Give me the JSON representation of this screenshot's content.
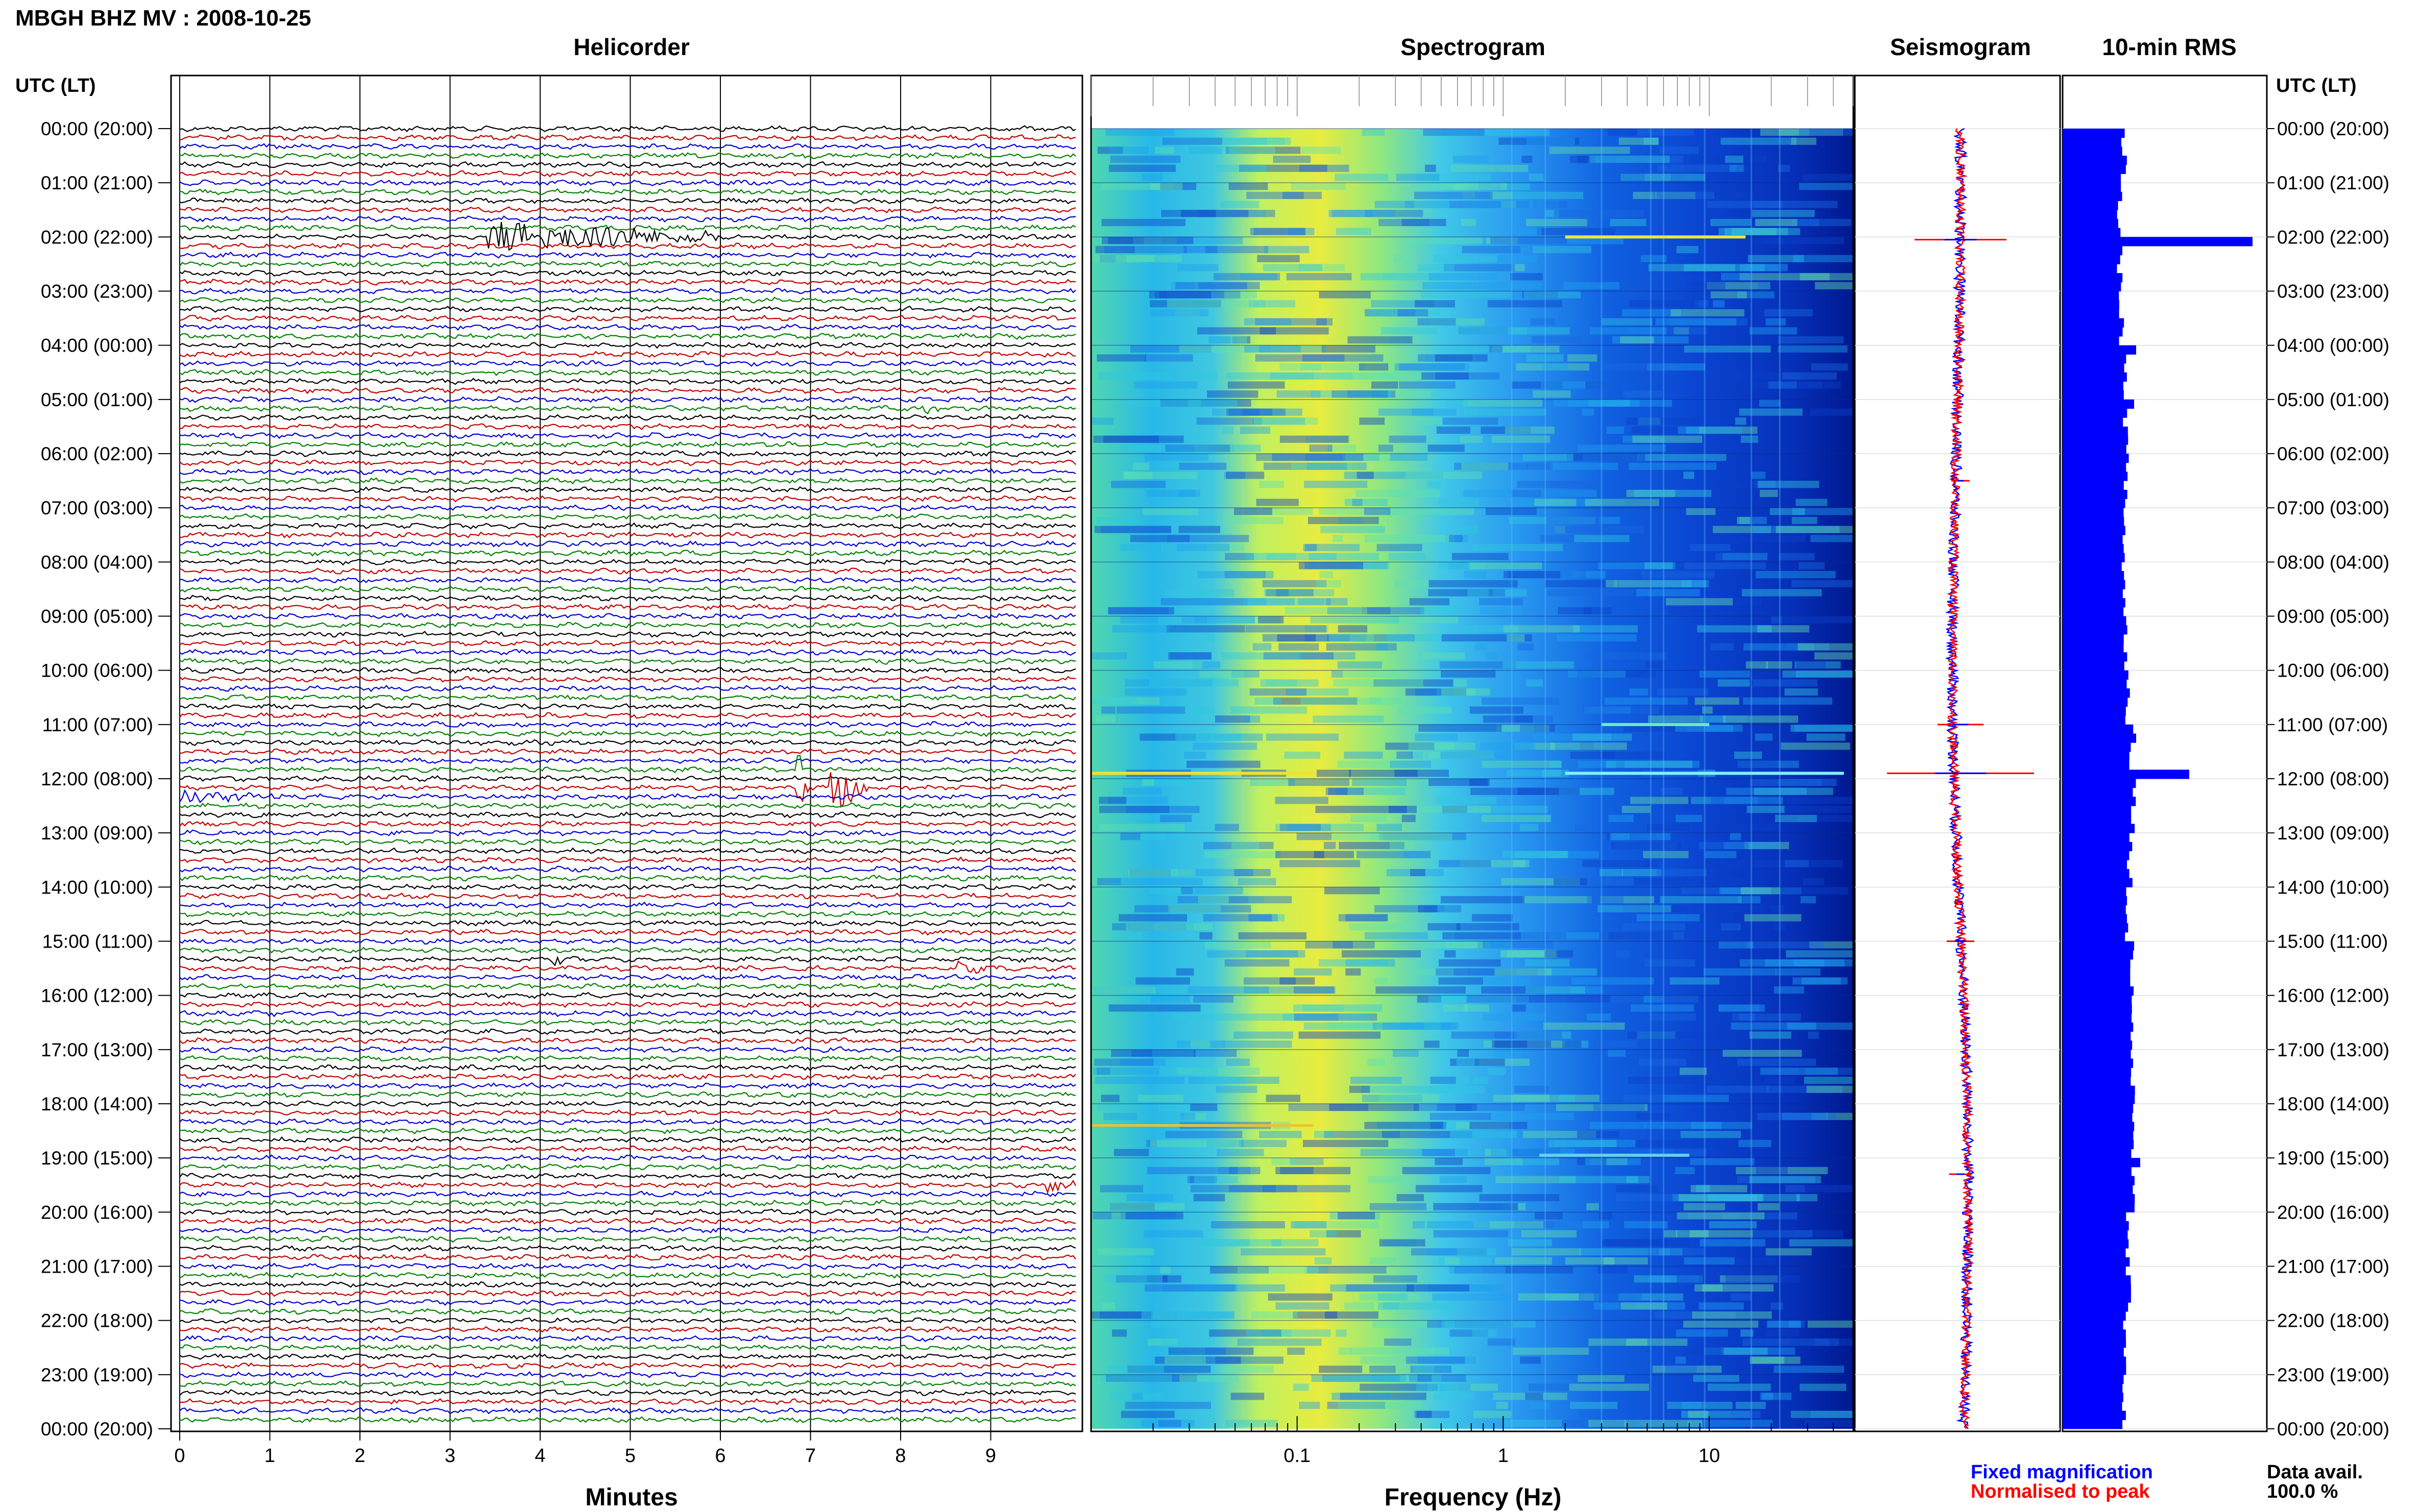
{
  "header": {
    "title": "MBGH BHZ MV : 2008-10-25",
    "utc_label_left": "UTC (LT)",
    "utc_label_right": "UTC (LT)"
  },
  "panels": {
    "helicorder": "Helicorder",
    "spectrogram": "Spectrogram",
    "seismogram": "Seismogram",
    "rms": "10-min RMS"
  },
  "time_labels": [
    "00:00 (20:00)",
    "01:00 (21:00)",
    "02:00 (22:00)",
    "03:00 (23:00)",
    "04:00 (00:00)",
    "05:00 (01:00)",
    "06:00 (02:00)",
    "07:00 (03:00)",
    "08:00 (04:00)",
    "09:00 (05:00)",
    "10:00 (06:00)",
    "11:00 (07:00)",
    "12:00 (08:00)",
    "13:00 (09:00)",
    "14:00 (10:00)",
    "15:00 (11:00)",
    "16:00 (12:00)",
    "17:00 (13:00)",
    "18:00 (14:00)",
    "19:00 (15:00)",
    "20:00 (16:00)",
    "21:00 (17:00)",
    "22:00 (18:00)",
    "23:00 (19:00)",
    "00:00 (20:00)"
  ],
  "chart_data": [
    {
      "type": "line",
      "name": "helicorder",
      "xlabel": "Minutes",
      "x_ticks": [
        0,
        1,
        2,
        3,
        4,
        5,
        6,
        7,
        8,
        9
      ],
      "xlim": [
        0,
        10
      ],
      "rows_per_hour": 6,
      "trace_colors": [
        "#000000",
        "#c00000",
        "#0000d0",
        "#008000"
      ],
      "events": [
        {
          "row": 12,
          "minute_start": 3.4,
          "minute_end": 6.0,
          "amplitude": 3.2,
          "color": "#000000"
        },
        {
          "row": 0,
          "minute_start": 2.48,
          "minute_end": 2.55,
          "amplitude": 1.2,
          "color": "#000000"
        },
        {
          "row": 31,
          "minute_start": 8.25,
          "minute_end": 8.4,
          "amplitude": 1.4,
          "color": "#0000d0"
        },
        {
          "row": 73,
          "minute_start": 7.2,
          "minute_end": 7.7,
          "amplitude": 5.0,
          "color": "#0000d0"
        },
        {
          "row": 73,
          "minute_start": 6.85,
          "minute_end": 7.0,
          "amplitude": 3.5,
          "color": "#0000d0"
        },
        {
          "row": 71,
          "minute_start": 6.85,
          "minute_end": 6.95,
          "amplitude": 4.0,
          "color": "#c00000"
        },
        {
          "row": 74,
          "minute_start": 0.0,
          "minute_end": 1.3,
          "amplitude": 1.3,
          "color": "#008000"
        },
        {
          "row": 92,
          "minute_start": 4.1,
          "minute_end": 4.3,
          "amplitude": 1.3,
          "color": "#c00000"
        },
        {
          "row": 93,
          "minute_start": 8.6,
          "minute_end": 9.0,
          "amplitude": 1.0,
          "color": "#0000d0"
        },
        {
          "row": 117,
          "minute_start": 9.6,
          "minute_end": 9.95,
          "amplitude": 1.6,
          "color": "#008000"
        },
        {
          "row": 79,
          "minute_start": 0.0,
          "minute_end": 9.95,
          "amplitude": 0.0,
          "color": "#000000"
        }
      ]
    },
    {
      "type": "heatmap",
      "name": "spectrogram",
      "xlabel": "Frequency (Hz)",
      "x_scale": "log",
      "xlim": [
        0.01,
        50
      ],
      "x_tick_labels": [
        "0.1",
        "1",
        "10"
      ],
      "x_tick_values": [
        0.1,
        1,
        10
      ],
      "peak_frequency_hz": 0.25,
      "colormap": [
        "#0000a0",
        "#0030d8",
        "#1870e8",
        "#20a8f0",
        "#30d0e0",
        "#70e8a0",
        "#c8f060",
        "#f0e830"
      ],
      "line_features": [
        {
          "hour": 2.0,
          "f_min": 2.0,
          "f_max": 15.0,
          "color": "#e8e840"
        },
        {
          "hour": 11.9,
          "f_min": 2.0,
          "f_max": 45.0,
          "color": "#80f0ff"
        },
        {
          "hour": 11.0,
          "f_min": 3.0,
          "f_max": 10.0,
          "color": "#70e8c0"
        },
        {
          "hour": 18.95,
          "f_min": 1.5,
          "f_max": 8.0,
          "color": "#60d0f0"
        }
      ]
    },
    {
      "type": "line",
      "name": "seismogram",
      "series": [
        {
          "name": "Fixed magnification",
          "color": "#0000ff"
        },
        {
          "name": "Normalised to peak",
          "color": "#ff0000"
        }
      ],
      "spikes": [
        {
          "hour": 2.05,
          "amplitude": 1.0
        },
        {
          "hour": 11.9,
          "amplitude": 1.6
        },
        {
          "hour": 11.0,
          "amplitude": 0.5
        },
        {
          "hour": 15.0,
          "amplitude": 0.3
        },
        {
          "hour": 19.3,
          "amplitude": 0.25
        },
        {
          "hour": 6.5,
          "amplitude": 0.2
        }
      ]
    },
    {
      "type": "bar",
      "name": "10-min RMS",
      "orientation": "horizontal",
      "color": "#0000ff",
      "bins_per_hour": 6,
      "baseline_values_hourly": [
        0.3,
        0.28,
        0.28,
        0.29,
        0.3,
        0.31,
        0.31,
        0.3,
        0.3,
        0.31,
        0.32,
        0.34,
        0.35,
        0.33,
        0.32,
        0.34,
        0.34,
        0.34,
        0.35,
        0.34,
        0.32,
        0.32,
        0.31,
        0.3
      ],
      "peaks": [
        {
          "bin": 12,
          "value": 0.93
        },
        {
          "bin": 71,
          "value": 0.62
        },
        {
          "bin": 67,
          "value": 0.36
        },
        {
          "bin": 114,
          "value": 0.38
        },
        {
          "bin": 30,
          "value": 0.35
        },
        {
          "bin": 24,
          "value": 0.36
        }
      ],
      "xlim": [
        0,
        1
      ]
    }
  ],
  "footer": {
    "legend_fixed": "Fixed magnification",
    "legend_normalised": "Normalised to peak",
    "data_avail_label": "Data avail.",
    "data_avail_value": "100.0 %",
    "legend_fixed_color": "#0000ff",
    "legend_normalised_color": "#ff0000"
  }
}
